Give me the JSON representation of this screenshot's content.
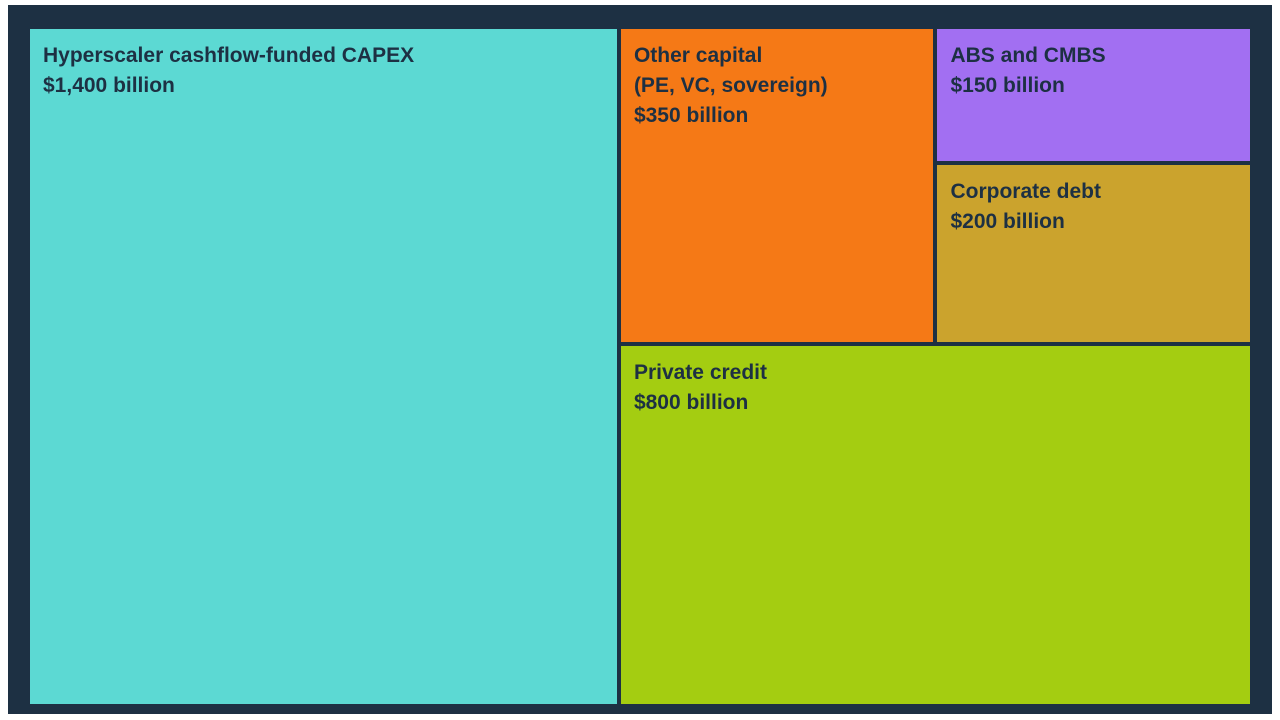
{
  "chart_data": {
    "type": "treemap",
    "total_value": 2900,
    "value_unit": "billion",
    "legend": "none",
    "items": [
      {
        "title": "Hyperscaler cashflow-funded CAPEX",
        "subtitle": "",
        "value_label": "$1,400 billion",
        "value": 1400,
        "color": "#5cd9d3"
      },
      {
        "title": "Other capital",
        "subtitle": "(PE, VC, sovereign)",
        "value_label": "$350 billion",
        "value": 350,
        "color": "#f57916"
      },
      {
        "title": "ABS and CMBS",
        "subtitle": "",
        "value_label": "$150 billion",
        "value": 150,
        "color": "#a26ff2"
      },
      {
        "title": "Corporate debt",
        "subtitle": "",
        "value_label": "$200 billion",
        "value": 200,
        "color": "#cba32d"
      },
      {
        "title": "Private credit",
        "subtitle": "",
        "value_label": "$800 billion",
        "value": 800,
        "color": "#a4cd11"
      }
    ],
    "colors": {
      "panel_background": "#1d3043",
      "text": "#1d3043",
      "page_background": "#ffffff"
    }
  }
}
